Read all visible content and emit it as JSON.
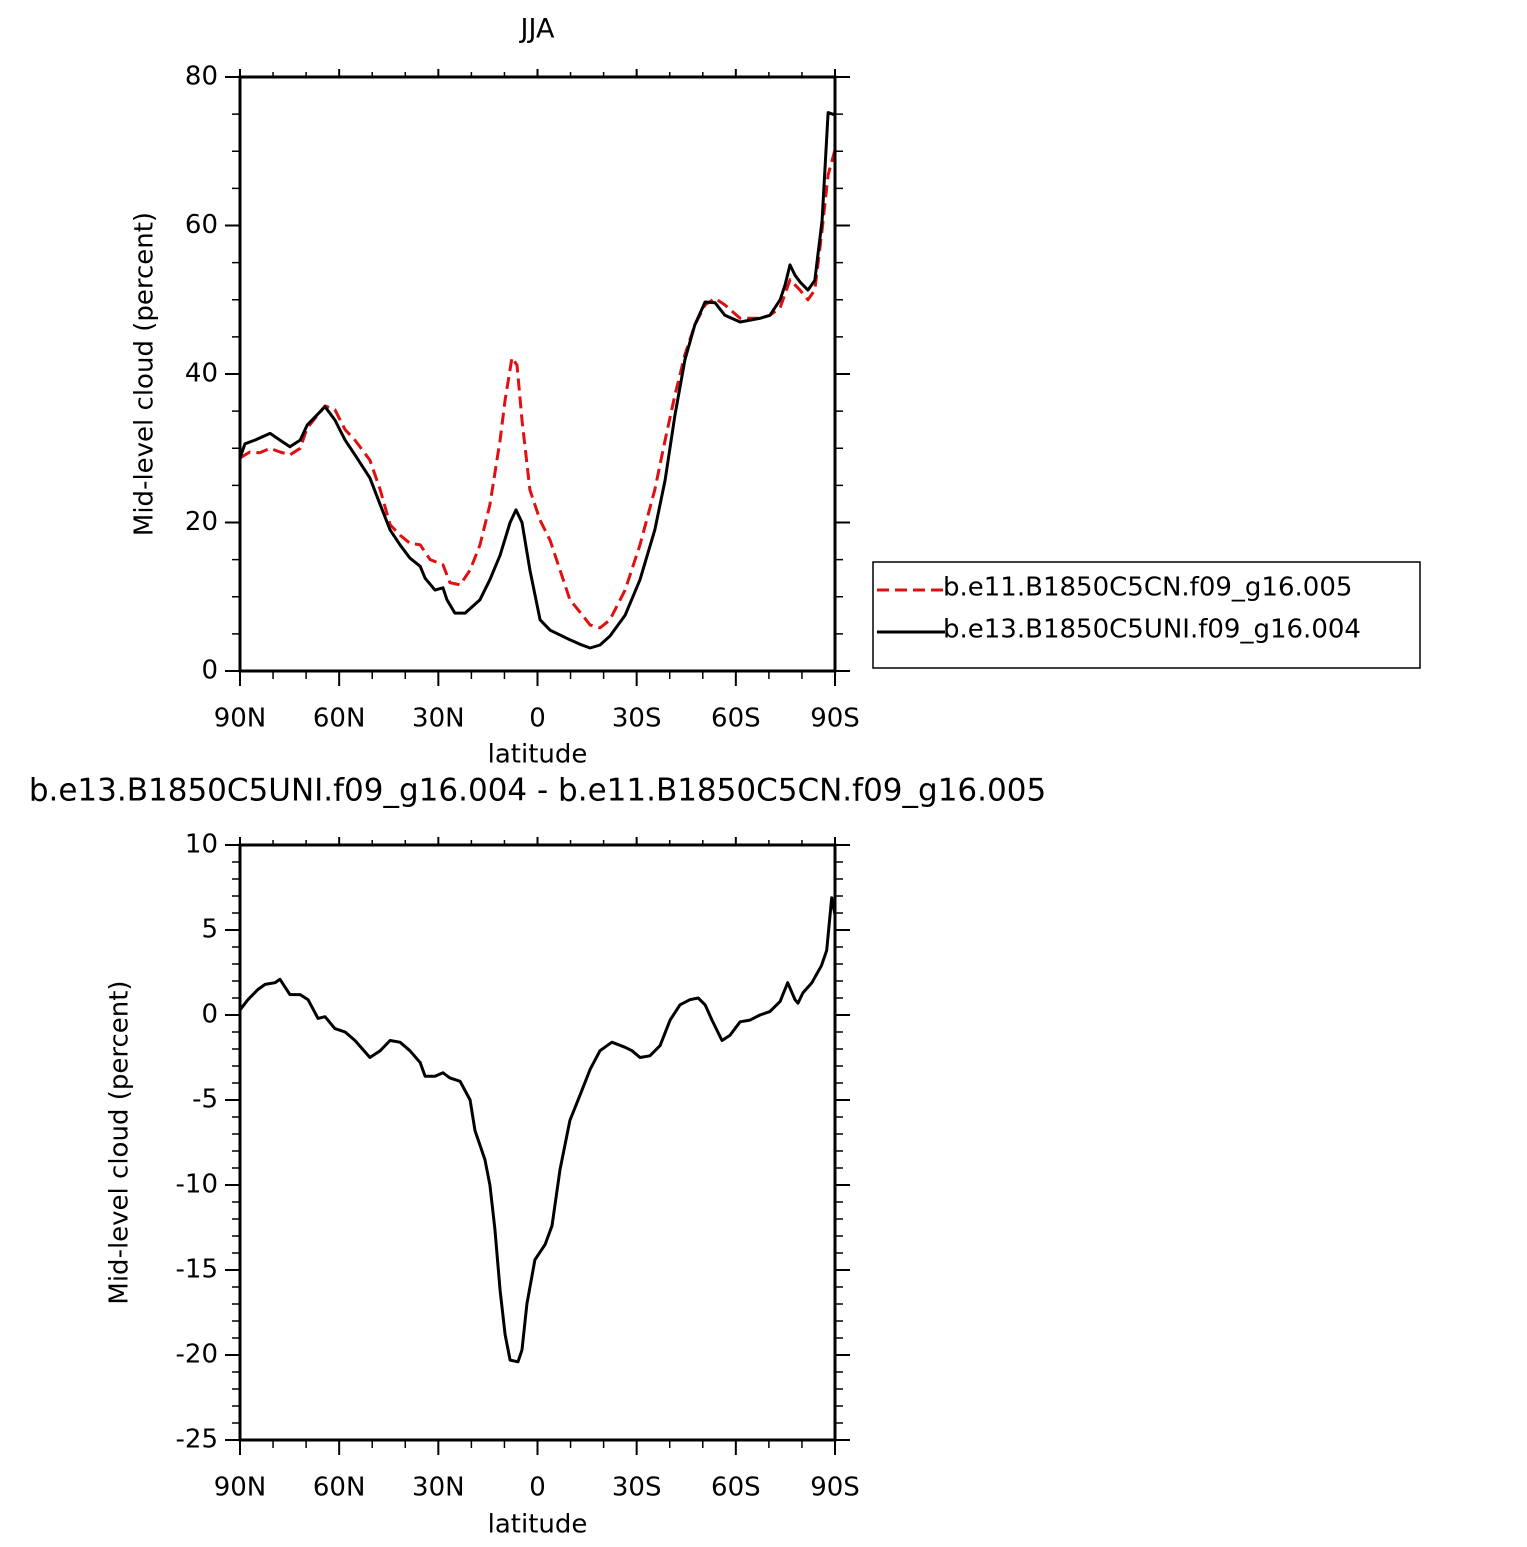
{
  "chart_data": [
    {
      "type": "line",
      "title": "JJA",
      "xlabel": "latitude",
      "ylabel": "Mid-level cloud (percent)",
      "xlim": [
        90,
        -90
      ],
      "xticks": [
        {
          "value": 90,
          "label": "90N"
        },
        {
          "value": 60,
          "label": "60N"
        },
        {
          "value": 30,
          "label": "30N"
        },
        0,
        {
          "value": -30,
          "label": "30S"
        },
        {
          "value": -60,
          "label": "60S"
        },
        {
          "value": -90,
          "label": "90S"
        }
      ],
      "xminorticks": [
        80,
        70,
        50,
        40,
        20,
        10,
        -10,
        -20,
        -40,
        -50,
        -70,
        -80
      ],
      "ylim": [
        0,
        80
      ],
      "yticks": [
        0,
        20,
        40,
        60,
        80
      ],
      "yminorticks": [
        5,
        10,
        15,
        25,
        30,
        35,
        45,
        50,
        55,
        65,
        70,
        75
      ],
      "legend": "right",
      "series": [
        {
          "name": "b.e11.B1850C5CN.f09_g16.005",
          "color": "#e01010",
          "dash": true,
          "x": [
            90,
            87,
            84,
            80.9,
            77.9,
            74.9,
            71.8,
            69.7,
            64.3,
            61.3,
            58.2,
            55.2,
            50.7,
            47.6,
            44.6,
            41.6,
            38.6,
            35.5,
            32.5,
            28.6,
            26.5,
            23.4,
            20.4,
            17.4,
            14.4,
            11.3,
            9.8,
            7.7,
            6.2,
            4.7,
            2.3,
            -0.8,
            -3.8,
            -6.8,
            -9.8,
            -12.9,
            -15.9,
            -18.9,
            -21.9,
            -26.5,
            -31,
            -35.5,
            -38.6,
            -41.6,
            -44.6,
            -47.6,
            -50.7,
            -53.7,
            -56.7,
            -61.3,
            -67.3,
            -70.3,
            -73.4,
            -76.4,
            -79.4,
            -81.8,
            -83.9,
            -86.1,
            -87.9,
            -90
          ],
          "values": [
            28.7,
            29.5,
            29.4,
            30,
            29.5,
            29.1,
            30,
            32.7,
            35.7,
            35.2,
            32.5,
            31.1,
            28.4,
            24.4,
            19.7,
            18.3,
            17.2,
            17,
            15,
            14.3,
            11.9,
            11.6,
            13.6,
            17,
            22.4,
            31.1,
            36.5,
            42.2,
            41.2,
            33.8,
            24.4,
            20.3,
            17.6,
            13.6,
            9.6,
            7.9,
            6.2,
            5.8,
            6.9,
            10.9,
            17,
            24.4,
            31.1,
            37.2,
            42.6,
            46.6,
            49.3,
            50.2,
            49.3,
            47.5,
            47.5,
            47.9,
            48.9,
            52.7,
            51.3,
            50,
            51.3,
            59.4,
            66.8,
            70.2
          ]
        },
        {
          "name": "b.e13.B1850C5UNI.f09_g16.004",
          "color": "#000000",
          "dash": false,
          "x": [
            90,
            88.5,
            85.5,
            80.9,
            77.9,
            74.9,
            71.8,
            69.7,
            64.3,
            61.3,
            58.2,
            55.2,
            50.7,
            47.6,
            44.6,
            41.6,
            38.6,
            35.5,
            34,
            31,
            28.6,
            27.4,
            25,
            21.9,
            17.4,
            14.4,
            11.3,
            8.3,
            6.5,
            4.7,
            2.3,
            -0.8,
            -3.8,
            -9.8,
            -12.9,
            -15.9,
            -18.9,
            -21.9,
            -26.5,
            -31,
            -35.5,
            -38.6,
            -41.6,
            -44.6,
            -47.6,
            -50.7,
            -53.7,
            -56.7,
            -61.3,
            -67.3,
            -70.3,
            -73.4,
            -74.9,
            -76.4,
            -77.9,
            -79.4,
            -81.8,
            -83.9,
            -86.1,
            -87.9,
            -90
          ],
          "values": [
            28.7,
            30.6,
            31.1,
            32,
            31.1,
            30.2,
            31.1,
            33.1,
            35.6,
            33.8,
            31.1,
            29.1,
            26,
            22.4,
            19,
            17,
            15.2,
            14.1,
            12.5,
            10.9,
            11.2,
            9.6,
            7.8,
            7.8,
            9.6,
            12.3,
            15.6,
            20,
            21.7,
            20,
            13.6,
            6.9,
            5.5,
            4.2,
            3.6,
            3.1,
            3.5,
            4.7,
            7.5,
            12.3,
            19,
            25.7,
            34.5,
            41.9,
            46.6,
            49.7,
            49.6,
            47.9,
            47,
            47.5,
            47.9,
            50,
            52,
            54.7,
            53.3,
            52.4,
            51.3,
            52.6,
            60.7,
            75.2,
            74.9
          ]
        }
      ]
    },
    {
      "type": "line",
      "title": "b.e13.B1850C5UNI.f09_g16.004 - b.e11.B1850C5CN.f09_g16.005",
      "xlabel": "latitude",
      "ylabel": "Mid-level cloud (percent)",
      "xlim": [
        90,
        -90
      ],
      "xticks": [
        {
          "value": 90,
          "label": "90N"
        },
        {
          "value": 60,
          "label": "60N"
        },
        {
          "value": 30,
          "label": "30N"
        },
        0,
        {
          "value": -30,
          "label": "30S"
        },
        {
          "value": -60,
          "label": "60S"
        },
        {
          "value": -90,
          "label": "90S"
        }
      ],
      "xminorticks": [
        80,
        70,
        50,
        40,
        20,
        10,
        -10,
        -20,
        -40,
        -50,
        -70,
        -80
      ],
      "ylim": [
        -25,
        10
      ],
      "yticks": [
        -25,
        -20,
        -15,
        -10,
        -5,
        0,
        5,
        10
      ],
      "yminorticks": [
        -24,
        -23,
        -22,
        -21,
        -19,
        -18,
        -17,
        -16,
        -14,
        -13,
        -12,
        -11,
        -9,
        -8,
        -7,
        -6,
        -4,
        -3,
        -2,
        -1,
        1,
        2,
        3,
        4,
        6,
        7,
        8,
        9
      ],
      "series": [
        {
          "color": "#000000",
          "dash": false,
          "x": [
            90,
            87.6,
            84.6,
            82.4,
            79.4,
            77.9,
            74.9,
            71.8,
            69.4,
            66.4,
            64.3,
            61.3,
            58.2,
            55.2,
            50.7,
            47.6,
            44.6,
            41.6,
            38.6,
            35.5,
            34,
            31,
            28.6,
            26.5,
            23.4,
            20.4,
            18.9,
            15.9,
            14.4,
            12.9,
            11.3,
            9.8,
            8.3,
            5.9,
            4.7,
            3.2,
            0.8,
            -2.3,
            -4.4,
            -6.8,
            -9.8,
            -12.9,
            -15.9,
            -18.9,
            -22.5,
            -26.5,
            -28.6,
            -31,
            -34,
            -37.1,
            -40.1,
            -43.1,
            -46.1,
            -48.6,
            -50.7,
            -52.8,
            -55.8,
            -58.2,
            -61.3,
            -64.3,
            -67.3,
            -70.3,
            -73.4,
            -75.7,
            -77.9,
            -78.8,
            -80.3,
            -83,
            -85.9,
            -87.5,
            -89,
            -90
          ],
          "values": [
            0.3,
            0.9,
            1.5,
            1.8,
            1.9,
            2.1,
            1.2,
            1.2,
            0.9,
            -0.2,
            -0.1,
            -0.8,
            -1,
            -1.5,
            -2.5,
            -2.1,
            -1.5,
            -1.6,
            -2.1,
            -2.8,
            -3.6,
            -3.6,
            -3.4,
            -3.7,
            -3.9,
            -5,
            -6.8,
            -8.5,
            -10,
            -12.6,
            -16.2,
            -18.8,
            -20.3,
            -20.4,
            -19.7,
            -17,
            -14.4,
            -13.5,
            -12.4,
            -9.1,
            -6.2,
            -4.7,
            -3.2,
            -2.1,
            -1.6,
            -1.9,
            -2.1,
            -2.5,
            -2.4,
            -1.8,
            -0.3,
            0.6,
            0.9,
            1,
            0.6,
            -0.3,
            -1.5,
            -1.2,
            -0.4,
            -0.3,
            0,
            0.2,
            0.8,
            1.9,
            0.9,
            0.7,
            1.3,
            1.9,
            2.9,
            3.8,
            6.9,
            5.9
          ]
        }
      ]
    }
  ]
}
